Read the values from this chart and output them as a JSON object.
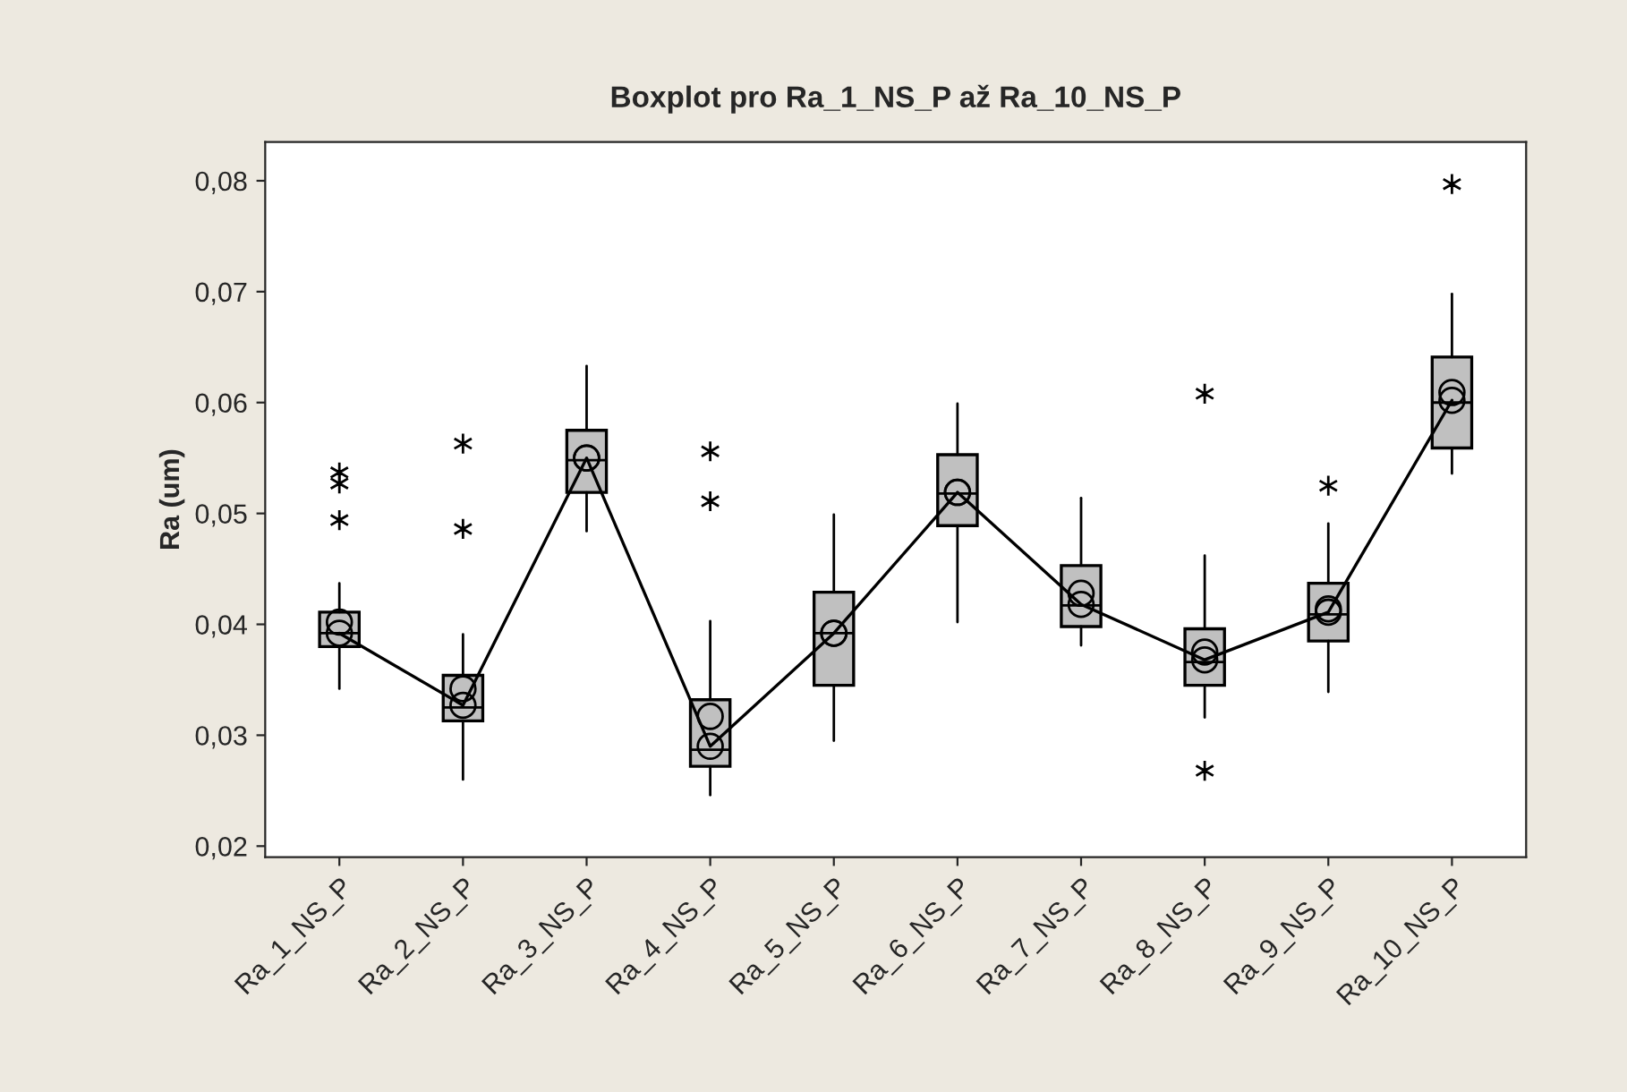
{
  "chart_data": {
    "type": "box",
    "title": "Boxplot pro Ra_1_NS_P až Ra_10_NS_P",
    "ylabel": "Ra (um)",
    "categories": [
      "Ra_1_NS_P",
      "Ra_2_NS_P",
      "Ra_3_NS_P",
      "Ra_4_NS_P",
      "Ra_5_NS_P",
      "Ra_6_NS_P",
      "Ra_7_NS_P",
      "Ra_8_NS_P",
      "Ra_9_NS_P",
      "Ra_10_NS_P"
    ],
    "color": "#c0c0c0",
    "boxes": [
      {
        "low": 0.0342,
        "q1": 0.038,
        "median": 0.0392,
        "q3": 0.0411,
        "high": 0.0437,
        "mean": 0.0402,
        "outliers": [
          0.0537,
          0.0527,
          0.0494
        ]
      },
      {
        "low": 0.026,
        "q1": 0.0313,
        "median": 0.0325,
        "q3": 0.0354,
        "high": 0.0391,
        "mean": 0.0342,
        "outliers": [
          0.0563,
          0.0486
        ]
      },
      {
        "low": 0.0484,
        "q1": 0.0519,
        "median": 0.0548,
        "q3": 0.0575,
        "high": 0.0633,
        "mean": 0.055
      },
      {
        "low": 0.0246,
        "q1": 0.0272,
        "median": 0.0287,
        "q3": 0.0332,
        "high": 0.0403,
        "mean": 0.0317,
        "outliers": [
          0.0556,
          0.0511
        ]
      },
      {
        "low": 0.0295,
        "q1": 0.0345,
        "median": 0.0392,
        "q3": 0.0429,
        "high": 0.0499,
        "mean": 0.0392
      },
      {
        "low": 0.0402,
        "q1": 0.0489,
        "median": 0.0518,
        "q3": 0.0553,
        "high": 0.0599,
        "mean": 0.0519
      },
      {
        "low": 0.0381,
        "q1": 0.0398,
        "median": 0.0417,
        "q3": 0.0453,
        "high": 0.0514,
        "mean": 0.0428
      },
      {
        "low": 0.0316,
        "q1": 0.0345,
        "median": 0.0366,
        "q3": 0.0396,
        "high": 0.0462,
        "mean": 0.0375,
        "outliers": [
          0.0608,
          0.0268
        ]
      },
      {
        "low": 0.0339,
        "q1": 0.0385,
        "median": 0.0409,
        "q3": 0.0437,
        "high": 0.0491,
        "mean": 0.0414,
        "outliers": [
          0.0525
        ]
      },
      {
        "low": 0.0536,
        "q1": 0.0559,
        "median": 0.06,
        "q3": 0.0641,
        "high": 0.0698,
        "mean": 0.0609,
        "outliers": [
          0.0797
        ]
      }
    ],
    "series": [
      {
        "type": "line",
        "color": "#000000",
        "marker": "circle",
        "x": [
          "Ra_1_NS_P",
          "Ra_2_NS_P",
          "Ra_3_NS_P",
          "Ra_4_NS_P",
          "Ra_5_NS_P",
          "Ra_6_NS_P",
          "Ra_7_NS_P",
          "Ra_8_NS_P",
          "Ra_9_NS_P",
          "Ra_10_NS_P"
        ],
        "values": [
          0.0392,
          0.0327,
          0.055,
          0.029,
          0.0392,
          0.0519,
          0.0418,
          0.0368,
          0.0411,
          0.0602
        ]
      }
    ],
    "ylim": [
      0.019,
      0.0835
    ],
    "yticks": [
      {
        "value": 0.02,
        "label": "0,02"
      },
      {
        "value": 0.03,
        "label": "0,03"
      },
      {
        "value": 0.04,
        "label": "0,04"
      },
      {
        "value": 0.05,
        "label": "0,05"
      },
      {
        "value": 0.06,
        "label": "0,06"
      },
      {
        "value": 0.07,
        "label": "0,07"
      },
      {
        "value": 0.08,
        "label": "0,08"
      }
    ],
    "grid": false,
    "legend": false
  }
}
